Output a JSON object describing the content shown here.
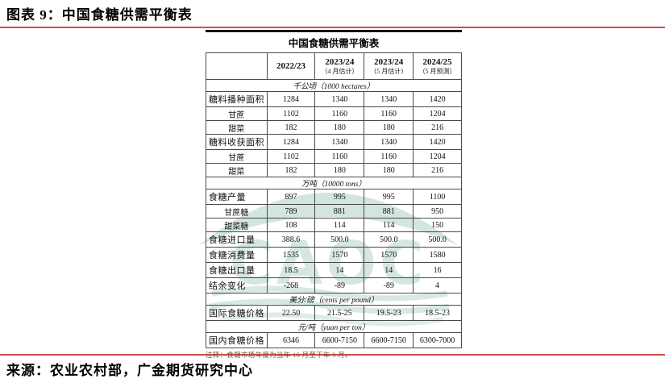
{
  "page": {
    "caption": "图表 9：中国食糖供需平衡表",
    "source": "来源：农业农村部，广金期货研究中心",
    "colors": {
      "accent_red": "#cc4f4c",
      "watermark_green": "#9fc9b7",
      "note_brown": "#7c4a3c"
    },
    "watermark_text": "CAOC"
  },
  "table": {
    "title": "中国食糖供需平衡表",
    "note": "注释：食糖市场年度为当年 10 月至下年 9 月。",
    "columns": [
      {
        "main": "",
        "sub": ""
      },
      {
        "main": "2022/23",
        "sub": ""
      },
      {
        "main": "2023/24",
        "sub": "（4 月估计）"
      },
      {
        "main": "2023/24",
        "sub": "（5 月估计）"
      },
      {
        "main": "2024/25",
        "sub": "（5 月预测）"
      }
    ],
    "rows": [
      {
        "type": "section",
        "label": "千公顷（1000 hectares）"
      },
      {
        "type": "major",
        "label": "糖料播种面积",
        "values": [
          "1284",
          "1340",
          "1340",
          "1420"
        ]
      },
      {
        "type": "sub",
        "label": "甘蔗",
        "values": [
          "1102",
          "1160",
          "1160",
          "1204"
        ]
      },
      {
        "type": "sub",
        "label": "甜菜",
        "values": [
          "182",
          "180",
          "180",
          "216"
        ]
      },
      {
        "type": "major",
        "label": "糖料收获面积",
        "values": [
          "1284",
          "1340",
          "1340",
          "1420"
        ]
      },
      {
        "type": "sub",
        "label": "甘蔗",
        "values": [
          "1102",
          "1160",
          "1160",
          "1204"
        ]
      },
      {
        "type": "sub",
        "label": "甜菜",
        "values": [
          "182",
          "180",
          "180",
          "216"
        ]
      },
      {
        "type": "section",
        "label": "万吨（10000 tons）"
      },
      {
        "type": "major",
        "label": "食糖产量",
        "values": [
          "897",
          "995",
          "995",
          "1100"
        ]
      },
      {
        "type": "sub",
        "label": "甘蔗糖",
        "values": [
          "789",
          "881",
          "881",
          "950"
        ]
      },
      {
        "type": "sub",
        "label": "甜菜糖",
        "values": [
          "108",
          "114",
          "114",
          "150"
        ]
      },
      {
        "type": "major",
        "label": "食糖进口量",
        "values": [
          "388.6",
          "500.0",
          "500.0",
          "500.0"
        ]
      },
      {
        "type": "major",
        "label": "食糖消费量",
        "values": [
          "1535",
          "1570",
          "1570",
          "1580"
        ]
      },
      {
        "type": "major",
        "label": "食糖出口量",
        "values": [
          "18.5",
          "14",
          "14",
          "16"
        ]
      },
      {
        "type": "major",
        "label": "结余变化",
        "values": [
          "-268",
          "-89",
          "-89",
          "4"
        ]
      },
      {
        "type": "section",
        "label": "美分/磅（cents per pound）"
      },
      {
        "type": "major",
        "label": "国际食糖价格",
        "values": [
          "22.50",
          "21.5-25",
          "19.5-23",
          "18.5-23"
        ]
      },
      {
        "type": "section",
        "label": "元/吨（yuan per ton）"
      },
      {
        "type": "major",
        "label": "国内食糖价格",
        "values": [
          "6346",
          "6600-7150",
          "6600-7150",
          "6300-7000"
        ]
      }
    ]
  }
}
